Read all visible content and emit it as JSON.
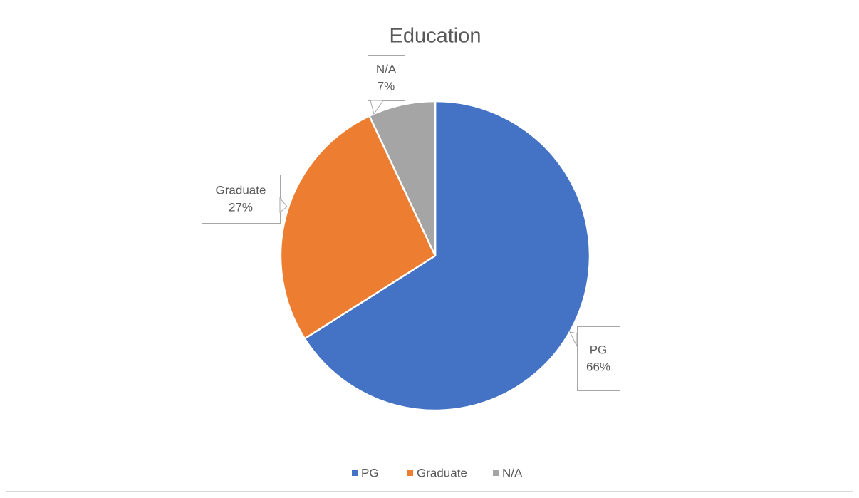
{
  "chart_data": {
    "type": "pie",
    "title": "Education",
    "categories": [
      "PG",
      "Graduate",
      "N/A"
    ],
    "values": [
      66,
      27,
      7
    ],
    "value_labels": [
      "66%",
      "27%",
      "7%"
    ],
    "colors": [
      "#4472c4",
      "#ed7d31",
      "#a5a5a5"
    ],
    "legend": "bottom"
  }
}
